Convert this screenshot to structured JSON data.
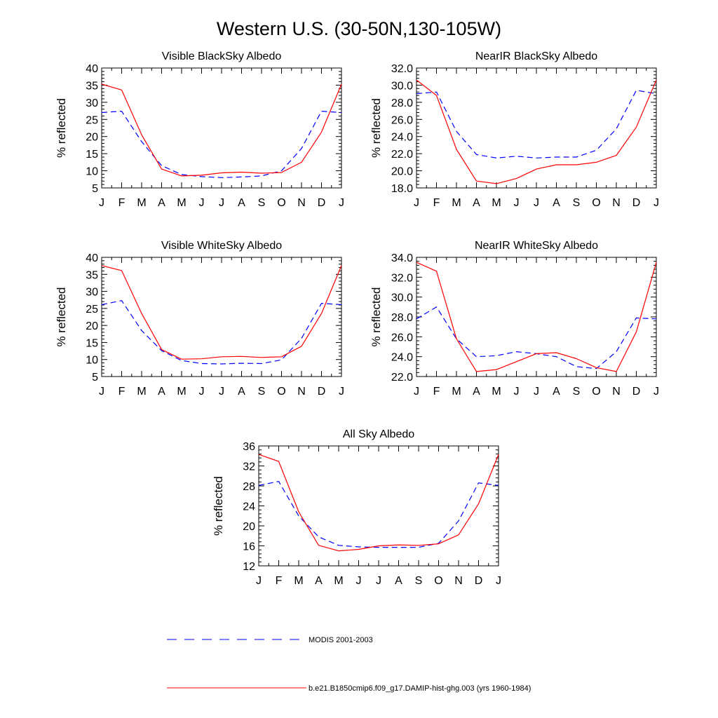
{
  "figure": {
    "title": "Western U.S. (30-50N,130-105W)"
  },
  "legend": [
    {
      "label": "MODIS 2001-2003",
      "color": "#0000ff",
      "dash": "dashed"
    },
    {
      "label": "b.e21.B1850cmip6.f09_g17.DAMIP-hist-ghg.003 (yrs 1960-1984)",
      "color": "#ff0000",
      "dash": "solid"
    }
  ],
  "chart_data": [
    {
      "type": "line",
      "title": "Visible BlackSky Albedo",
      "ylabel": "% reflected",
      "x": [
        "J",
        "F",
        "M",
        "A",
        "M",
        "J",
        "J",
        "A",
        "S",
        "O",
        "N",
        "D",
        "J"
      ],
      "ylim": [
        5,
        40
      ],
      "yticks": [
        "5",
        "10",
        "15",
        "20",
        "25",
        "30",
        "35",
        "40"
      ],
      "series": [
        {
          "name": "MODIS 2001-2003",
          "color": "#0000ff",
          "dash": "dashed",
          "values": [
            27.0,
            27.4,
            18.5,
            11.5,
            8.9,
            8.3,
            8.0,
            8.2,
            8.5,
            10.0,
            16.5,
            27.4,
            27.0
          ]
        },
        {
          "name": "b.e21.B1850cmip6.f09_g17.DAMIP-hist-ghg.003 (yrs 1960-1984)",
          "color": "#ff0000",
          "dash": "solid",
          "values": [
            35.3,
            33.6,
            20.5,
            10.5,
            8.5,
            8.7,
            9.4,
            9.6,
            9.3,
            9.5,
            12.5,
            21.3,
            35.3
          ]
        }
      ]
    },
    {
      "type": "line",
      "title": "NearIR BlackSky Albedo",
      "ylabel": "% reflected",
      "x": [
        "J",
        "F",
        "M",
        "A",
        "M",
        "J",
        "J",
        "A",
        "S",
        "O",
        "N",
        "D",
        "J"
      ],
      "ylim": [
        18,
        32
      ],
      "yticks": [
        "18.0",
        "20.0",
        "22.0",
        "24.0",
        "26.0",
        "28.0",
        "30.0",
        "32.0"
      ],
      "series": [
        {
          "name": "MODIS 2001-2003",
          "color": "#0000ff",
          "dash": "dashed",
          "values": [
            29.0,
            29.2,
            24.6,
            21.9,
            21.5,
            21.7,
            21.5,
            21.6,
            21.6,
            22.4,
            24.9,
            29.4,
            29.0
          ]
        },
        {
          "name": "b.e21.B1850cmip6.f09_g17.DAMIP-hist-ghg.003 (yrs 1960-1984)",
          "color": "#ff0000",
          "dash": "solid",
          "values": [
            30.6,
            28.8,
            22.5,
            18.8,
            18.5,
            19.1,
            20.2,
            20.7,
            20.7,
            21.0,
            21.8,
            25.1,
            30.6
          ]
        }
      ]
    },
    {
      "type": "line",
      "title": "Visible WhiteSky Albedo",
      "ylabel": "% reflected",
      "x": [
        "J",
        "F",
        "M",
        "A",
        "M",
        "J",
        "J",
        "A",
        "S",
        "O",
        "N",
        "D",
        "J"
      ],
      "ylim": [
        5,
        40
      ],
      "yticks": [
        "5",
        "10",
        "15",
        "20",
        "25",
        "30",
        "35",
        "40"
      ],
      "series": [
        {
          "name": "MODIS 2001-2003",
          "color": "#0000ff",
          "dash": "dashed",
          "values": [
            26.1,
            27.3,
            18.5,
            12.6,
            9.7,
            8.8,
            8.7,
            8.9,
            8.8,
            9.9,
            16.2,
            26.5,
            26.1
          ]
        },
        {
          "name": "b.e21.B1850cmip6.f09_g17.DAMIP-hist-ghg.003 (yrs 1960-1984)",
          "color": "#ff0000",
          "dash": "solid",
          "values": [
            37.6,
            36.1,
            23.5,
            12.9,
            10.1,
            10.2,
            10.8,
            10.9,
            10.6,
            10.8,
            13.9,
            23.5,
            37.6
          ]
        }
      ]
    },
    {
      "type": "line",
      "title": "NearIR WhiteSky Albedo",
      "ylabel": "% reflected",
      "x": [
        "J",
        "F",
        "M",
        "A",
        "M",
        "J",
        "J",
        "A",
        "S",
        "O",
        "N",
        "D",
        "J"
      ],
      "ylim": [
        22,
        34
      ],
      "yticks": [
        "22.0",
        "24.0",
        "26.0",
        "28.0",
        "30.0",
        "32.0",
        "34.0"
      ],
      "series": [
        {
          "name": "MODIS 2001-2003",
          "color": "#0000ff",
          "dash": "dashed",
          "values": [
            27.8,
            29.0,
            25.8,
            24.0,
            24.1,
            24.5,
            24.3,
            24.0,
            23.0,
            22.8,
            24.5,
            27.9,
            27.8
          ]
        },
        {
          "name": "b.e21.B1850cmip6.f09_g17.DAMIP-hist-ghg.003 (yrs 1960-1984)",
          "color": "#ff0000",
          "dash": "solid",
          "values": [
            33.5,
            32.6,
            25.8,
            22.5,
            22.7,
            23.5,
            24.3,
            24.4,
            23.8,
            22.9,
            22.5,
            26.5,
            33.5
          ]
        }
      ]
    },
    {
      "type": "line",
      "title": "All Sky Albedo",
      "ylabel": "% reflected",
      "x": [
        "J",
        "F",
        "M",
        "A",
        "M",
        "J",
        "J",
        "A",
        "S",
        "O",
        "N",
        "D",
        "J"
      ],
      "ylim": [
        12,
        36
      ],
      "yticks": [
        "12",
        "16",
        "20",
        "24",
        "28",
        "32",
        "36"
      ],
      "series": [
        {
          "name": "MODIS 2001-2003",
          "color": "#0000ff",
          "dash": "dashed",
          "values": [
            28.1,
            28.9,
            22.0,
            17.8,
            16.1,
            15.8,
            15.7,
            15.7,
            15.7,
            16.5,
            21.0,
            28.6,
            28.1
          ]
        },
        {
          "name": "b.e21.B1850cmip6.f09_g17.DAMIP-hist-ghg.003 (yrs 1960-1984)",
          "color": "#ff0000",
          "dash": "solid",
          "values": [
            34.3,
            32.9,
            22.8,
            16.1,
            15.0,
            15.3,
            16.0,
            16.2,
            16.1,
            16.4,
            18.2,
            24.4,
            34.3
          ]
        }
      ]
    }
  ]
}
